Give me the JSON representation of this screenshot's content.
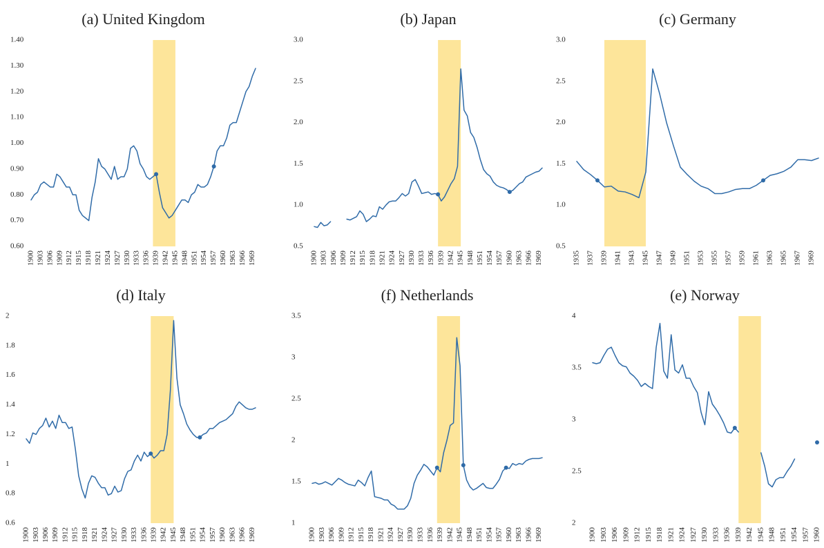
{
  "chart_data": [
    {
      "type": "line",
      "title": "(a) United Kingdom",
      "x": [
        1900,
        1901,
        1902,
        1903,
        1904,
        1905,
        1906,
        1907,
        1908,
        1909,
        1910,
        1911,
        1912,
        1913,
        1914,
        1915,
        1916,
        1917,
        1918,
        1919,
        1920,
        1921,
        1922,
        1923,
        1924,
        1925,
        1926,
        1927,
        1928,
        1929,
        1930,
        1931,
        1932,
        1933,
        1934,
        1935,
        1936,
        1937,
        1938,
        1939,
        1940,
        1941,
        1942,
        1943,
        1944,
        1945,
        1946,
        1947,
        1948,
        1949,
        1950,
        1951,
        1952,
        1953,
        1954,
        1955,
        1956,
        1957,
        1958,
        1959,
        1960,
        1961,
        1962,
        1963,
        1964,
        1965,
        1966,
        1967,
        1968,
        1969,
        1970
      ],
      "series": [
        {
          "color": "#2f6ba8",
          "values": [
            0.78,
            0.8,
            0.81,
            0.84,
            0.85,
            0.84,
            0.83,
            0.83,
            0.88,
            0.87,
            0.85,
            0.83,
            0.83,
            0.8,
            0.8,
            0.74,
            0.72,
            0.71,
            0.7,
            0.79,
            0.85,
            0.94,
            0.91,
            0.9,
            0.88,
            0.86,
            0.91,
            0.86,
            0.87,
            0.87,
            0.9,
            0.98,
            0.99,
            0.97,
            0.92,
            0.9,
            0.87,
            0.86,
            0.87,
            0.88,
            0.81,
            0.75,
            0.73,
            0.71,
            0.72,
            0.74,
            0.76,
            0.78,
            0.78,
            0.77,
            0.8,
            0.81,
            0.84,
            0.83,
            0.83,
            0.84,
            0.87,
            0.91,
            0.97,
            0.99,
            0.99,
            1.02,
            1.07,
            1.08,
            1.08,
            1.12,
            1.16,
            1.2,
            1.22,
            1.26,
            1.29
          ]
        }
      ],
      "markers": {
        "x": [
          1939,
          1957
        ],
        "values": [
          0.88,
          0.91
        ]
      },
      "shade": [
        1938,
        1945
      ],
      "shade_color": "#fde59a",
      "xlim": [
        1900,
        1970
      ],
      "xticks": [
        1900,
        1903,
        1906,
        1909,
        1912,
        1915,
        1918,
        1921,
        1924,
        1927,
        1930,
        1933,
        1936,
        1939,
        1942,
        1945,
        1948,
        1951,
        1954,
        1957,
        1960,
        1963,
        1966,
        1969
      ],
      "ylim": [
        0.6,
        1.4
      ],
      "yticks": [
        {
          "value": 0.6,
          "label": "0.60"
        },
        {
          "value": 0.7,
          "label": "0.70"
        },
        {
          "value": 0.8,
          "label": "0.80"
        },
        {
          "value": 0.9,
          "label": "0.90"
        },
        {
          "value": 1.0,
          "label": "1.00"
        },
        {
          "value": 1.1,
          "label": "1.10"
        },
        {
          "value": 1.2,
          "label": "1.20"
        },
        {
          "value": 1.3,
          "label": "1.30"
        },
        {
          "value": 1.4,
          "label": "1.40"
        }
      ]
    },
    {
      "type": "line",
      "title": "(b) Japan",
      "x": [
        1900,
        1901,
        1902,
        1903,
        1904,
        1905,
        1906,
        1907,
        1908,
        1909,
        1910,
        1911,
        1912,
        1913,
        1914,
        1915,
        1916,
        1917,
        1918,
        1919,
        1920,
        1921,
        1922,
        1923,
        1924,
        1925,
        1926,
        1927,
        1928,
        1929,
        1930,
        1931,
        1932,
        1933,
        1934,
        1935,
        1936,
        1937,
        1938,
        1939,
        1940,
        1941,
        1942,
        1943,
        1944,
        1945,
        1946,
        1947,
        1948,
        1949,
        1950,
        1951,
        1952,
        1953,
        1954,
        1955,
        1956,
        1957,
        1958,
        1959,
        1960,
        1961,
        1962,
        1963,
        1964,
        1965,
        1966,
        1967,
        1968,
        1969,
        1970
      ],
      "series": [
        {
          "color": "#2f6ba8",
          "values": [
            0.74,
            0.73,
            0.79,
            0.75,
            0.76,
            0.8,
            null,
            null,
            null,
            null,
            0.83,
            0.82,
            0.84,
            0.86,
            0.93,
            0.89,
            0.8,
            0.83,
            0.87,
            0.86,
            0.98,
            0.95,
            1.0,
            1.04,
            1.05,
            1.05,
            1.09,
            1.14,
            1.11,
            1.14,
            1.28,
            1.31,
            1.23,
            1.14,
            1.15,
            1.16,
            1.13,
            1.14,
            1.13,
            1.05,
            1.1,
            1.18,
            1.26,
            1.32,
            1.47,
            2.65,
            2.15,
            2.08,
            1.88,
            1.82,
            1.7,
            1.55,
            1.43,
            1.38,
            1.35,
            1.28,
            1.24,
            1.22,
            1.21,
            1.19,
            1.16,
            1.18,
            1.22,
            1.26,
            1.28,
            1.34,
            1.36,
            1.38,
            1.4,
            1.41,
            1.45
          ]
        }
      ],
      "markers": {
        "x": [
          1938,
          1960
        ],
        "values": [
          1.13,
          1.16
        ]
      },
      "shade": [
        1938,
        1945
      ],
      "shade_color": "#fde59a",
      "xlim": [
        1900,
        1970
      ],
      "xticks": [
        1900,
        1903,
        1906,
        1909,
        1912,
        1915,
        1918,
        1921,
        1924,
        1927,
        1930,
        1933,
        1936,
        1939,
        1942,
        1945,
        1948,
        1951,
        1954,
        1957,
        1960,
        1963,
        1966,
        1969
      ],
      "ylim": [
        0.5,
        3.0
      ],
      "yticks": [
        0.5,
        {
          "value": 1.0,
          "label": "1.0"
        },
        1.5,
        {
          "value": 2.0,
          "label": "2.0"
        },
        2.5,
        {
          "value": 3.0,
          "label": "3.0"
        }
      ]
    },
    {
      "type": "line",
      "title": "(c) Germany",
      "x": [
        1935,
        1936,
        1937,
        1938,
        1939,
        1940,
        1941,
        1942,
        1943,
        1944,
        1945,
        1946,
        1947,
        1948,
        1949,
        1950,
        1951,
        1952,
        1953,
        1954,
        1955,
        1956,
        1957,
        1958,
        1959,
        1960,
        1961,
        1962,
        1963,
        1964,
        1965,
        1966,
        1967,
        1968,
        1969,
        1970
      ],
      "series": [
        {
          "color": "#2f6ba8",
          "values": [
            1.53,
            1.43,
            1.37,
            1.3,
            1.22,
            1.23,
            1.17,
            1.16,
            1.13,
            1.09,
            1.4,
            2.65,
            2.35,
            2.0,
            1.72,
            1.46,
            1.37,
            1.29,
            1.23,
            1.2,
            1.14,
            1.14,
            1.16,
            1.19,
            1.2,
            1.2,
            1.24,
            1.3,
            1.36,
            1.38,
            1.41,
            1.46,
            1.55,
            1.55,
            1.54,
            1.57
          ]
        }
      ],
      "markers": {
        "x": [
          1938,
          1962
        ],
        "values": [
          1.3,
          1.3
        ]
      },
      "shade": [
        1939,
        1945
      ],
      "shade_color": "#fde59a",
      "xlim": [
        1935,
        1970
      ],
      "xticks": [
        1935,
        1937,
        1939,
        1941,
        1943,
        1945,
        1947,
        1949,
        1951,
        1953,
        1955,
        1957,
        1959,
        1961,
        1963,
        1965,
        1967,
        1969
      ],
      "ylim": [
        0.5,
        3.0
      ],
      "yticks": [
        0.5,
        {
          "value": 1.0,
          "label": "1.0"
        },
        1.5,
        {
          "value": 2.0,
          "label": "2.0"
        },
        2.5,
        {
          "value": 3.0,
          "label": "3.0"
        }
      ]
    },
    {
      "type": "line",
      "title": "(d) Italy",
      "x": [
        1900,
        1901,
        1902,
        1903,
        1904,
        1905,
        1906,
        1907,
        1908,
        1909,
        1910,
        1911,
        1912,
        1913,
        1914,
        1915,
        1916,
        1917,
        1918,
        1919,
        1920,
        1921,
        1922,
        1923,
        1924,
        1925,
        1926,
        1927,
        1928,
        1929,
        1930,
        1931,
        1932,
        1933,
        1934,
        1935,
        1936,
        1937,
        1938,
        1939,
        1940,
        1941,
        1942,
        1943,
        1944,
        1945,
        1946,
        1947,
        1948,
        1949,
        1950,
        1951,
        1952,
        1953,
        1954,
        1955,
        1956,
        1957,
        1958,
        1959,
        1960,
        1961,
        1962,
        1963,
        1964,
        1965,
        1966,
        1967,
        1968,
        1969,
        1970
      ],
      "series": [
        {
          "color": "#2f6ba8",
          "values": [
            1.17,
            1.14,
            1.21,
            1.2,
            1.24,
            1.26,
            1.31,
            1.25,
            1.29,
            1.24,
            1.33,
            1.28,
            1.28,
            1.24,
            1.25,
            1.1,
            0.92,
            0.83,
            0.77,
            0.87,
            0.92,
            0.91,
            0.87,
            0.84,
            0.84,
            0.79,
            0.8,
            0.85,
            0.81,
            0.82,
            0.9,
            0.95,
            0.96,
            1.02,
            1.06,
            1.02,
            1.08,
            1.05,
            1.07,
            1.04,
            1.06,
            1.09,
            1.09,
            1.2,
            1.5,
            1.97,
            1.58,
            1.4,
            1.34,
            1.27,
            1.23,
            1.2,
            1.18,
            1.18,
            1.2,
            1.21,
            1.24,
            1.24,
            1.26,
            1.28,
            1.29,
            1.3,
            1.32,
            1.34,
            1.39,
            1.42,
            1.4,
            1.38,
            1.37,
            1.37,
            1.38
          ]
        }
      ],
      "markers": {
        "x": [
          1938,
          1953
        ],
        "values": [
          1.07,
          1.18
        ]
      },
      "shade": [
        1938,
        1945
      ],
      "shade_color": "#fde59a",
      "xlim": [
        1900,
        1970
      ],
      "xticks": [
        1900,
        1903,
        1906,
        1909,
        1912,
        1915,
        1918,
        1921,
        1924,
        1927,
        1930,
        1933,
        1936,
        1939,
        1942,
        1945,
        1948,
        1951,
        1954,
        1957,
        1960,
        1963,
        1966,
        1969
      ],
      "ylim": [
        0.6,
        2
      ],
      "yticks": [
        0.6,
        0.8,
        1,
        1.2,
        1.4,
        1.6,
        1.8,
        2
      ]
    },
    {
      "type": "line",
      "title": "(f) Netherlands",
      "x": [
        1900,
        1901,
        1902,
        1903,
        1904,
        1905,
        1906,
        1907,
        1908,
        1909,
        1910,
        1911,
        1912,
        1913,
        1914,
        1915,
        1916,
        1917,
        1918,
        1919,
        1920,
        1921,
        1922,
        1923,
        1924,
        1925,
        1926,
        1927,
        1928,
        1929,
        1930,
        1931,
        1932,
        1933,
        1934,
        1935,
        1936,
        1937,
        1938,
        1939,
        1940,
        1941,
        1942,
        1943,
        1944,
        1945,
        1946,
        1947,
        1948,
        1949,
        1950,
        1951,
        1952,
        1953,
        1954,
        1955,
        1956,
        1957,
        1958,
        1959,
        1960,
        1961,
        1962,
        1963,
        1964,
        1965,
        1966,
        1967,
        1968,
        1969,
        1970
      ],
      "series": [
        {
          "color": "#2f6ba8",
          "values": [
            1.48,
            1.49,
            1.47,
            1.48,
            1.5,
            1.48,
            1.46,
            1.5,
            1.54,
            1.52,
            1.49,
            1.47,
            1.46,
            1.45,
            1.52,
            1.49,
            1.45,
            1.55,
            1.63,
            1.32,
            1.31,
            1.3,
            1.28,
            1.28,
            1.23,
            1.21,
            1.17,
            1.17,
            1.17,
            1.21,
            1.3,
            1.48,
            1.58,
            1.64,
            1.71,
            1.68,
            1.63,
            1.58,
            1.67,
            1.62,
            1.85,
            2.0,
            2.18,
            2.21,
            3.24,
            2.9,
            1.7,
            1.52,
            1.44,
            1.4,
            1.42,
            1.45,
            1.48,
            1.43,
            1.42,
            1.42,
            1.47,
            1.53,
            1.63,
            1.67,
            1.66,
            1.72,
            1.7,
            1.72,
            1.71,
            1.75,
            1.77,
            1.78,
            1.78,
            1.78,
            1.79
          ]
        }
      ],
      "markers": {
        "x": [
          1938,
          1946,
          1959
        ],
        "values": [
          1.67,
          1.7,
          1.67
        ]
      },
      "shade": [
        1938,
        1945
      ],
      "shade_color": "#fde59a",
      "xlim": [
        1900,
        1970
      ],
      "xticks": [
        1900,
        1903,
        1906,
        1909,
        1912,
        1915,
        1918,
        1921,
        1924,
        1927,
        1930,
        1933,
        1936,
        1939,
        1942,
        1945,
        1948,
        1951,
        1954,
        1957,
        1960,
        1963,
        1966,
        1969
      ],
      "ylim": [
        1,
        3.5
      ],
      "yticks": [
        1,
        1.5,
        2,
        2.5,
        3,
        3.5
      ]
    },
    {
      "type": "line",
      "title": "(e) Norway",
      "x": [
        1900,
        1901,
        1902,
        1903,
        1904,
        1905,
        1906,
        1907,
        1908,
        1909,
        1910,
        1911,
        1912,
        1913,
        1914,
        1915,
        1916,
        1917,
        1918,
        1919,
        1920,
        1921,
        1922,
        1923,
        1924,
        1925,
        1926,
        1927,
        1928,
        1929,
        1930,
        1931,
        1932,
        1933,
        1934,
        1935,
        1936,
        1937,
        1938,
        1939,
        1940,
        1941,
        1942,
        1943,
        1944,
        1945,
        1946,
        1947,
        1948,
        1949,
        1950,
        1951,
        1952,
        1953,
        1954,
        1955,
        1956,
        1957,
        1958,
        1959,
        1960
      ],
      "series": [
        {
          "color": "#2f6ba8",
          "values": [
            3.55,
            3.54,
            3.55,
            3.62,
            3.68,
            3.7,
            3.62,
            3.55,
            3.52,
            3.51,
            3.45,
            3.42,
            3.38,
            3.32,
            3.35,
            3.32,
            3.3,
            3.7,
            3.93,
            3.47,
            3.4,
            3.82,
            3.48,
            3.45,
            3.53,
            3.4,
            3.4,
            3.32,
            3.26,
            3.07,
            2.95,
            3.27,
            3.15,
            3.1,
            3.04,
            2.97,
            2.88,
            2.87,
            2.92,
            2.88,
            null,
            null,
            null,
            null,
            null,
            2.68,
            2.55,
            2.38,
            2.35,
            2.42,
            2.44,
            2.44,
            2.5,
            2.55,
            2.62,
            null,
            null,
            null,
            null,
            null,
            2.78
          ]
        }
      ],
      "markers": {
        "x": [
          1938,
          1960
        ],
        "values": [
          2.92,
          2.78
        ]
      },
      "shade": [
        1939,
        1945
      ],
      "shade_color": "#fde59a",
      "xlim": [
        1900,
        1960
      ],
      "xticks": [
        1900,
        1903,
        1906,
        1909,
        1912,
        1915,
        1918,
        1921,
        1924,
        1927,
        1930,
        1933,
        1936,
        1939,
        1942,
        1945,
        1948,
        1951,
        1954,
        1957,
        1960
      ],
      "ylim": [
        2,
        4
      ],
      "yticks": [
        2,
        2.5,
        3,
        3.5,
        4
      ]
    }
  ]
}
